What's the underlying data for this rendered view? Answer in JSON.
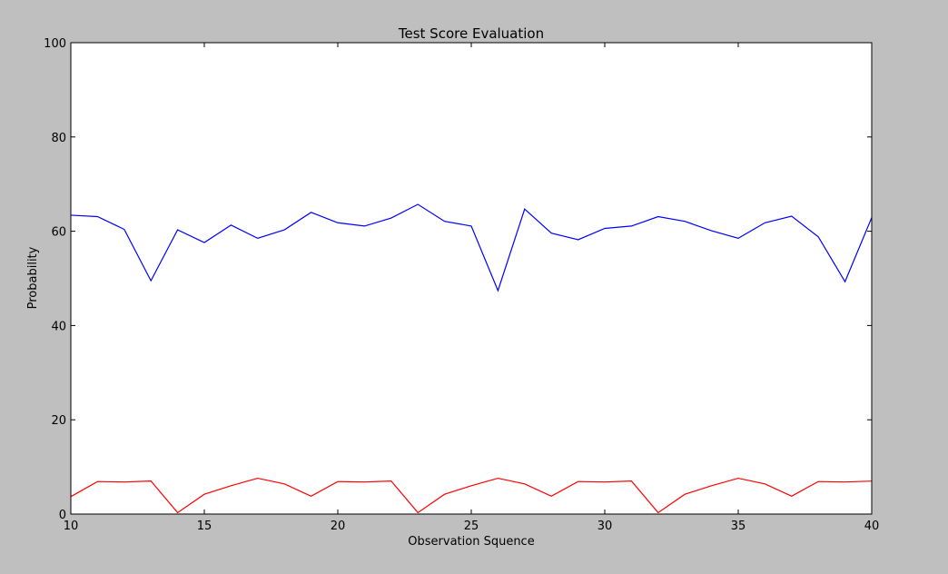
{
  "chart_data": {
    "type": "line",
    "title": "Test Score Evaluation",
    "xlabel": "Observation Squence",
    "ylabel": "Probability",
    "xlim": [
      10,
      40
    ],
    "ylim": [
      0,
      100
    ],
    "xticks": [
      10,
      15,
      20,
      25,
      30,
      35,
      40
    ],
    "yticks": [
      0,
      20,
      40,
      60,
      80,
      100
    ],
    "grid": false,
    "x": [
      10,
      11,
      12,
      13,
      14,
      15,
      16,
      17,
      18,
      19,
      20,
      21,
      22,
      23,
      24,
      25,
      26,
      27,
      28,
      29,
      30,
      31,
      32,
      33,
      34,
      35,
      36,
      37,
      38,
      39,
      40
    ],
    "series": [
      {
        "color": "#0000ff",
        "values": [
          63.4,
          63.1,
          60.4,
          49.5,
          60.3,
          57.6,
          61.3,
          58.5,
          60.3,
          64.0,
          61.8,
          61.1,
          62.8,
          65.7,
          62.1,
          61.1,
          47.4,
          64.7,
          59.6,
          58.2,
          60.6,
          61.1,
          63.1,
          62.1,
          60.1,
          58.5,
          61.8,
          63.2,
          58.8,
          49.3,
          62.9
        ]
      },
      {
        "color": "#ff0000",
        "values": [
          3.7,
          6.9,
          6.8,
          7.0,
          0.3,
          4.2,
          6.0,
          7.6,
          6.4,
          3.8,
          6.9,
          6.8,
          7.0,
          0.3,
          4.2,
          6.0,
          7.6,
          6.4,
          3.8,
          6.9,
          6.8,
          7.0,
          0.3,
          4.2,
          6.0,
          7.6,
          6.4,
          3.8,
          6.9,
          6.8,
          7.0
        ]
      }
    ]
  }
}
